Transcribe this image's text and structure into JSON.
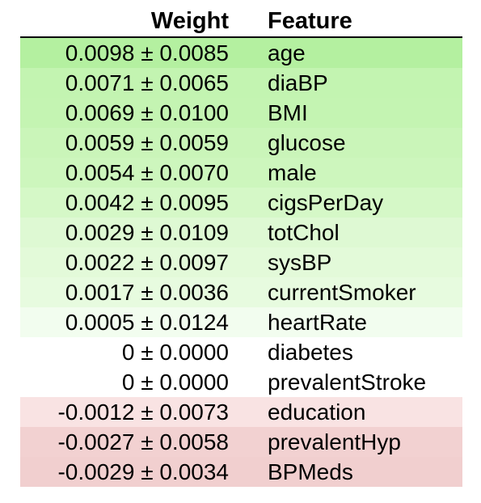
{
  "header": {
    "weight": "Weight",
    "feature": "Feature"
  },
  "rows": [
    {
      "weight": "0.0098 ± 0.0085",
      "feature": "age",
      "bg": "#b4f0a0"
    },
    {
      "weight": "0.0071 ± 0.0065",
      "feature": "diaBP",
      "bg": "#c3f4b1"
    },
    {
      "weight": "0.0069 ± 0.0100",
      "feature": "BMI",
      "bg": "#c4f4b2"
    },
    {
      "weight": "0.0059 ± 0.0059",
      "feature": "glucose",
      "bg": "#caf5b9"
    },
    {
      "weight": "0.0054 ± 0.0070",
      "feature": "male",
      "bg": "#cdf6bd"
    },
    {
      "weight": "0.0042 ± 0.0095",
      "feature": "cigsPerDay",
      "bg": "#d5f8c7"
    },
    {
      "weight": "0.0029 ± 0.0109",
      "feature": "totChol",
      "bg": "#def9d3"
    },
    {
      "weight": "0.0022 ± 0.0097",
      "feature": "sysBP",
      "bg": "#e3fad9"
    },
    {
      "weight": "0.0017 ± 0.0036",
      "feature": "currentSmoker",
      "bg": "#e7fbdf"
    },
    {
      "weight": "0.0005 ± 0.0124",
      "feature": "heartRate",
      "bg": "#f2fdef"
    },
    {
      "weight": "0 ± 0.0000",
      "feature": "diabetes",
      "bg": "#ffffff"
    },
    {
      "weight": "0 ± 0.0000",
      "feature": "prevalentStroke",
      "bg": "#ffffff"
    },
    {
      "weight": "-0.0012 ± 0.0073",
      "feature": "education",
      "bg": "#f9e3e3"
    },
    {
      "weight": "-0.0027 ± 0.0058",
      "feature": "prevalentHyp",
      "bg": "#f2d1d1"
    },
    {
      "weight": "-0.0029 ± 0.0034",
      "feature": "BPMeds",
      "bg": "#f1cfcf"
    }
  ]
}
